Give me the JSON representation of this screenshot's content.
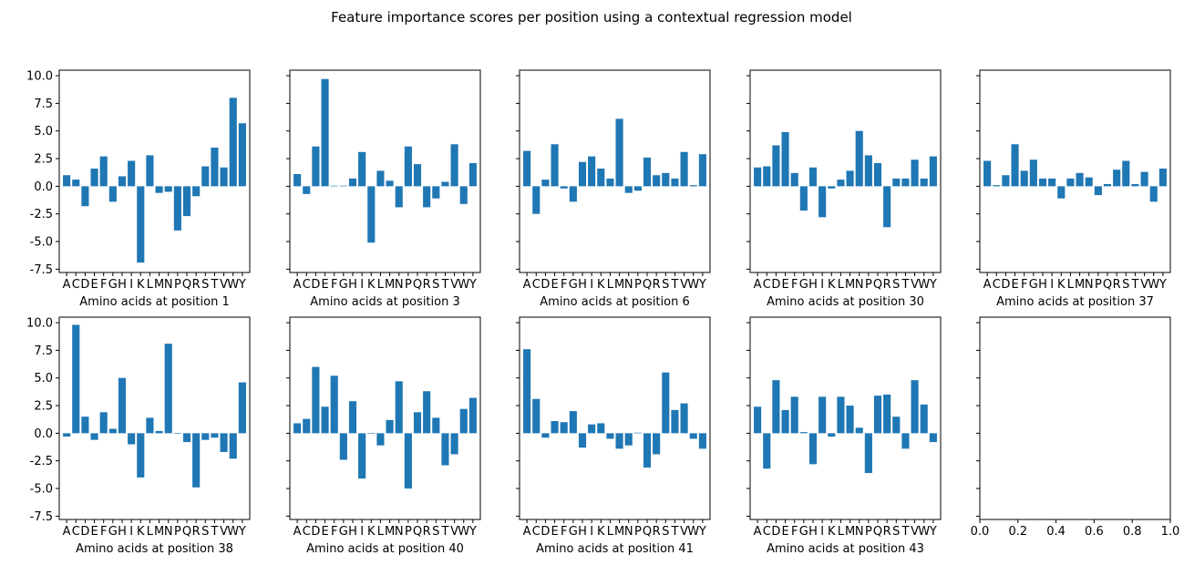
{
  "figure": {
    "title": "Feature importance scores per position using a contextual regression model"
  },
  "colors": {
    "bar": "#1f77b4",
    "axis": "#000000",
    "background": "#ffffff"
  },
  "chart_data": [
    {
      "type": "bar",
      "xlabel": "Amino acids at position 1",
      "ylabel": "",
      "categories": [
        "A",
        "C",
        "D",
        "E",
        "F",
        "G",
        "H",
        "I",
        "K",
        "L",
        "M",
        "N",
        "P",
        "Q",
        "R",
        "S",
        "T",
        "V",
        "W",
        "Y"
      ],
      "values": [
        1.0,
        0.6,
        -1.8,
        1.6,
        2.7,
        -1.4,
        0.9,
        2.3,
        -6.9,
        2.8,
        -0.6,
        -0.5,
        -4.0,
        -2.7,
        -0.9,
        1.8,
        3.5,
        1.7,
        8.0,
        5.7
      ],
      "ylim": [
        -7.8,
        10.5
      ],
      "yticks": [
        -7.5,
        -5.0,
        -2.5,
        0.0,
        2.5,
        5.0,
        7.5,
        10.0
      ],
      "grid": false
    },
    {
      "type": "bar",
      "xlabel": "Amino acids at position 3",
      "ylabel": "",
      "categories": [
        "A",
        "C",
        "D",
        "E",
        "F",
        "G",
        "H",
        "I",
        "K",
        "L",
        "M",
        "N",
        "P",
        "Q",
        "R",
        "S",
        "T",
        "V",
        "W",
        "Y"
      ],
      "values": [
        1.1,
        -0.7,
        3.6,
        9.7,
        0.05,
        0.05,
        0.7,
        3.1,
        -5.1,
        1.4,
        0.5,
        -1.9,
        3.6,
        2.0,
        -1.9,
        -1.1,
        0.4,
        3.8,
        -1.6,
        2.1
      ],
      "ylim": [
        -7.8,
        10.5
      ],
      "yticks": [
        -7.5,
        -5.0,
        -2.5,
        0.0,
        2.5,
        5.0,
        7.5,
        10.0
      ],
      "grid": false
    },
    {
      "type": "bar",
      "xlabel": "Amino acids at position 6",
      "ylabel": "",
      "categories": [
        "A",
        "C",
        "D",
        "E",
        "F",
        "G",
        "H",
        "I",
        "K",
        "L",
        "M",
        "N",
        "P",
        "Q",
        "R",
        "S",
        "T",
        "V",
        "W",
        "Y"
      ],
      "values": [
        3.2,
        -2.5,
        0.6,
        3.8,
        -0.2,
        -1.4,
        2.2,
        2.7,
        1.6,
        0.7,
        6.1,
        -0.6,
        -0.4,
        2.6,
        1.0,
        1.2,
        0.7,
        3.1,
        0.1,
        2.9
      ],
      "ylim": [
        -7.8,
        10.5
      ],
      "yticks": [
        -7.5,
        -5.0,
        -2.5,
        0.0,
        2.5,
        5.0,
        7.5,
        10.0
      ],
      "grid": false
    },
    {
      "type": "bar",
      "xlabel": "Amino acids at position 30",
      "ylabel": "",
      "categories": [
        "A",
        "C",
        "D",
        "E",
        "F",
        "G",
        "H",
        "I",
        "K",
        "L",
        "M",
        "N",
        "P",
        "Q",
        "R",
        "S",
        "T",
        "V",
        "W",
        "Y"
      ],
      "values": [
        1.7,
        1.8,
        3.7,
        4.9,
        1.2,
        -2.2,
        1.7,
        -2.8,
        -0.2,
        0.6,
        1.4,
        5.0,
        2.8,
        2.1,
        -3.7,
        0.7,
        0.7,
        2.4,
        0.7,
        2.7
      ],
      "ylim": [
        -7.8,
        10.5
      ],
      "yticks": [
        -7.5,
        -5.0,
        -2.5,
        0.0,
        2.5,
        5.0,
        7.5,
        10.0
      ],
      "grid": false
    },
    {
      "type": "bar",
      "xlabel": "Amino acids at position 37",
      "ylabel": "",
      "categories": [
        "A",
        "C",
        "D",
        "E",
        "F",
        "G",
        "H",
        "I",
        "K",
        "L",
        "M",
        "N",
        "P",
        "Q",
        "R",
        "S",
        "T",
        "V",
        "W",
        "Y"
      ],
      "values": [
        2.3,
        0.1,
        1.0,
        3.8,
        1.4,
        2.4,
        0.7,
        0.7,
        -1.1,
        0.7,
        1.2,
        0.8,
        -0.8,
        0.2,
        1.5,
        2.3,
        0.2,
        1.3,
        -1.4,
        1.6
      ],
      "ylim": [
        -7.8,
        10.5
      ],
      "yticks": [
        -7.5,
        -5.0,
        -2.5,
        0.0,
        2.5,
        5.0,
        7.5,
        10.0
      ],
      "grid": false
    },
    {
      "type": "bar",
      "xlabel": "Amino acids at position 38",
      "ylabel": "",
      "categories": [
        "A",
        "C",
        "D",
        "E",
        "F",
        "G",
        "H",
        "I",
        "K",
        "L",
        "M",
        "N",
        "P",
        "Q",
        "R",
        "S",
        "T",
        "V",
        "W",
        "Y"
      ],
      "values": [
        -0.3,
        9.8,
        1.5,
        -0.6,
        1.9,
        0.4,
        5.0,
        -1.0,
        -4.0,
        1.4,
        0.2,
        8.1,
        0.0,
        -0.8,
        -4.9,
        -0.6,
        -0.4,
        -1.7,
        -2.3,
        4.6
      ],
      "ylim": [
        -7.8,
        10.5
      ],
      "yticks": [
        -7.5,
        -5.0,
        -2.5,
        0.0,
        2.5,
        5.0,
        7.5,
        10.0
      ],
      "grid": false
    },
    {
      "type": "bar",
      "xlabel": "Amino acids at position 40",
      "ylabel": "",
      "categories": [
        "A",
        "C",
        "D",
        "E",
        "F",
        "G",
        "H",
        "I",
        "K",
        "L",
        "M",
        "N",
        "P",
        "Q",
        "R",
        "S",
        "T",
        "V",
        "W",
        "Y"
      ],
      "values": [
        0.9,
        1.3,
        6.0,
        2.4,
        5.2,
        -2.4,
        2.9,
        -4.1,
        0.0,
        -1.1,
        1.2,
        4.7,
        -5.0,
        1.9,
        3.8,
        1.4,
        -2.9,
        -1.9,
        2.2,
        3.2
      ],
      "ylim": [
        -7.8,
        10.5
      ],
      "yticks": [
        -7.5,
        -5.0,
        -2.5,
        0.0,
        2.5,
        5.0,
        7.5,
        10.0
      ],
      "grid": false
    },
    {
      "type": "bar",
      "xlabel": "Amino acids at position 41",
      "ylabel": "",
      "categories": [
        "A",
        "C",
        "D",
        "E",
        "F",
        "G",
        "H",
        "I",
        "K",
        "L",
        "M",
        "N",
        "P",
        "Q",
        "R",
        "S",
        "T",
        "V",
        "W",
        "Y"
      ],
      "values": [
        7.6,
        3.1,
        -0.4,
        1.1,
        1.0,
        2.0,
        -1.3,
        0.8,
        0.9,
        -0.5,
        -1.4,
        -1.1,
        0.05,
        -3.1,
        -1.9,
        5.5,
        2.1,
        2.7,
        -0.5,
        -1.4
      ],
      "ylim": [
        -7.8,
        10.5
      ],
      "yticks": [
        -7.5,
        -5.0,
        -2.5,
        0.0,
        2.5,
        5.0,
        7.5,
        10.0
      ],
      "grid": false
    },
    {
      "type": "bar",
      "xlabel": "Amino acids at position 43",
      "ylabel": "",
      "categories": [
        "A",
        "C",
        "D",
        "E",
        "F",
        "G",
        "H",
        "I",
        "K",
        "L",
        "M",
        "N",
        "P",
        "Q",
        "R",
        "S",
        "T",
        "V",
        "W",
        "Y"
      ],
      "values": [
        2.4,
        -3.2,
        4.8,
        2.1,
        3.3,
        0.1,
        -2.8,
        3.3,
        -0.3,
        3.3,
        2.5,
        0.5,
        -3.6,
        3.4,
        3.5,
        1.5,
        -1.4,
        4.8,
        2.6,
        -0.8
      ],
      "ylim": [
        -7.8,
        10.5
      ],
      "yticks": [
        -7.5,
        -5.0,
        -2.5,
        0.0,
        2.5,
        5.0,
        7.5,
        10.0
      ],
      "grid": false
    },
    {
      "type": "bar",
      "xlabel": "",
      "ylabel": "",
      "categories": [],
      "values": [],
      "xlim": [
        0.0,
        1.0
      ],
      "xticks": [
        "0.0",
        "0.2",
        "0.4",
        "0.6",
        "0.8",
        "1.0"
      ],
      "ylim": [
        -7.8,
        10.5
      ],
      "yticks": [
        -7.5,
        -5.0,
        -2.5,
        0.0,
        2.5,
        5.0,
        7.5,
        10.0
      ],
      "grid": false
    }
  ]
}
